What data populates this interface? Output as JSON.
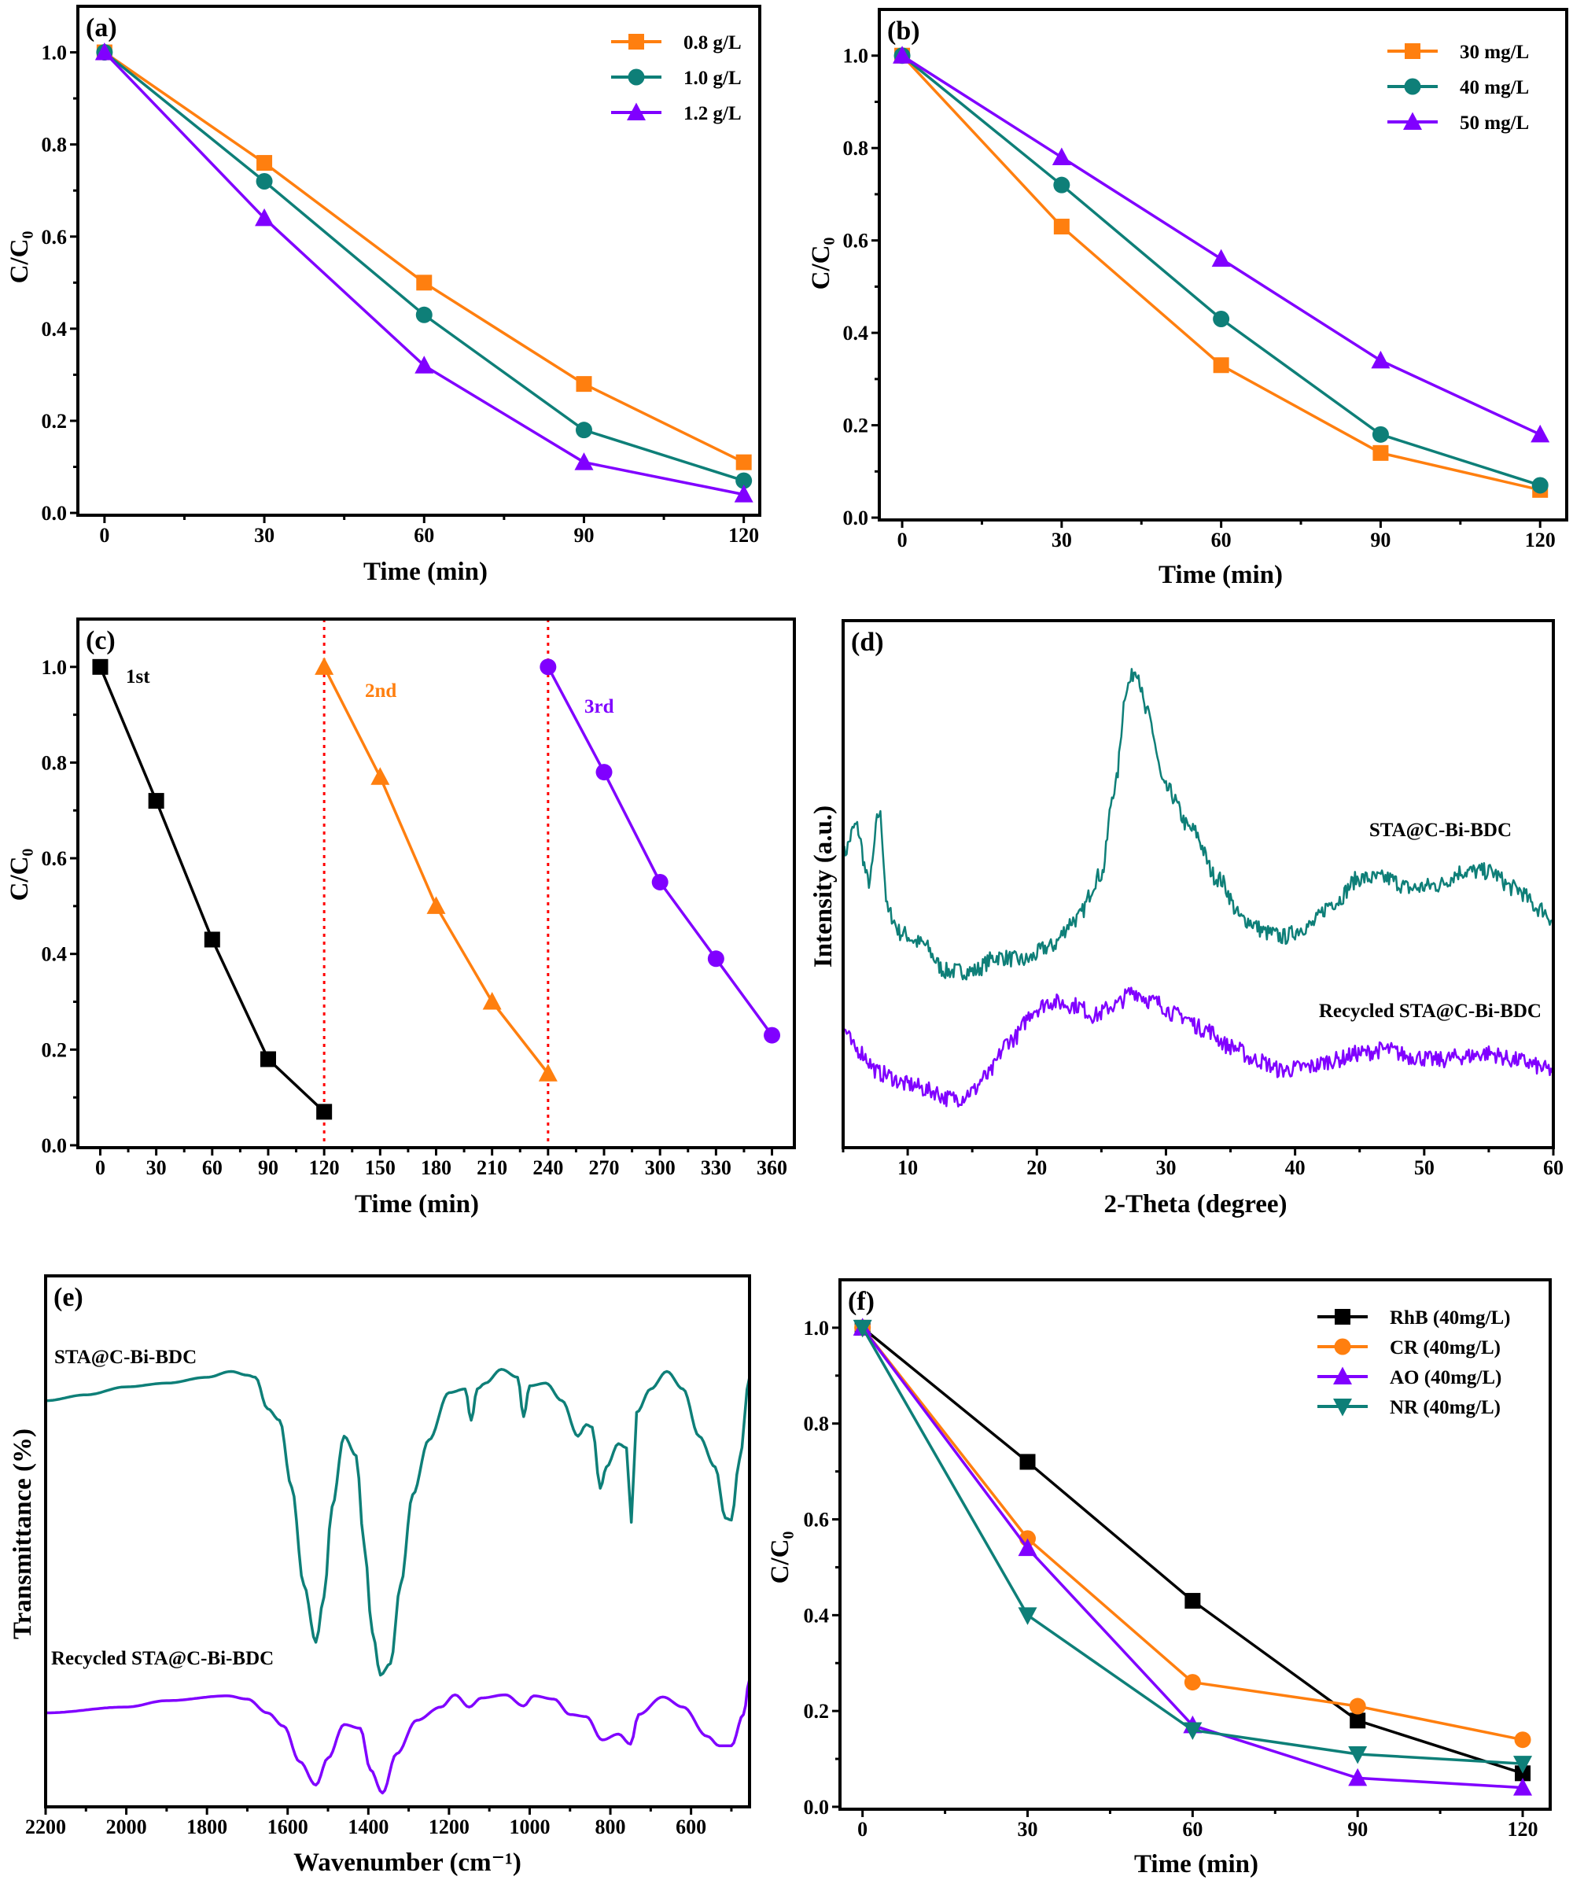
{
  "colors": {
    "orange": "#FF7F0F",
    "teal": "#0E7F78",
    "purple": "#8000FF",
    "black": "#000000",
    "red_guide": "#FF0000"
  },
  "chart_data": [
    {
      "panel": "(a)",
      "type": "line",
      "xlabel": "Time (min)",
      "ylabel": "C/C₀",
      "xlim": [
        -5,
        123
      ],
      "ylim": [
        -0.005,
        1.1
      ],
      "xticks": [
        "0",
        "30",
        "60",
        "90",
        "120"
      ],
      "yticks": [
        "0.0",
        "0.2",
        "0.4",
        "0.6",
        "0.8",
        "1.0"
      ],
      "legend": "top-right",
      "series": [
        {
          "name": "0.8 g/L",
          "color": "#FF7F0F",
          "marker": "square",
          "x": [
            0,
            30,
            60,
            90,
            120
          ],
          "values": [
            1.0,
            0.76,
            0.5,
            0.28,
            0.11
          ]
        },
        {
          "name": "1.0 g/L",
          "color": "#0E7F78",
          "marker": "circle",
          "x": [
            0,
            30,
            60,
            90,
            120
          ],
          "values": [
            1.0,
            0.72,
            0.43,
            0.18,
            0.07
          ]
        },
        {
          "name": "1.2 g/L",
          "color": "#8000FF",
          "marker": "triangle-up",
          "x": [
            0,
            30,
            60,
            90,
            120
          ],
          "values": [
            1.0,
            0.64,
            0.32,
            0.11,
            0.04
          ]
        }
      ]
    },
    {
      "panel": "(b)",
      "type": "line",
      "xlabel": "Time (min)",
      "ylabel": "C/C₀",
      "xlim": [
        -4.3,
        125
      ],
      "ylim": [
        -0.005,
        1.1
      ],
      "xticks": [
        "0",
        "30",
        "60",
        "90",
        "120"
      ],
      "yticks": [
        "0.0",
        "0.2",
        "0.4",
        "0.6",
        "0.8",
        "1.0"
      ],
      "legend": "top-right",
      "series": [
        {
          "name": "30 mg/L",
          "color": "#FF7F0F",
          "marker": "square",
          "x": [
            0,
            30,
            60,
            90,
            120
          ],
          "values": [
            1.0,
            0.63,
            0.33,
            0.14,
            0.06
          ]
        },
        {
          "name": "40 mg/L",
          "color": "#0E7F78",
          "marker": "circle",
          "x": [
            0,
            30,
            60,
            90,
            120
          ],
          "values": [
            1.0,
            0.72,
            0.43,
            0.18,
            0.07
          ]
        },
        {
          "name": "50 mg/L",
          "color": "#8000FF",
          "marker": "triangle-up",
          "x": [
            0,
            30,
            60,
            90,
            120
          ],
          "values": [
            1.0,
            0.78,
            0.56,
            0.34,
            0.18
          ]
        }
      ]
    },
    {
      "panel": "(c)",
      "type": "line",
      "xlabel": "Time (min)",
      "ylabel": "C/C₀",
      "xlim": [
        -12,
        372
      ],
      "ylim": [
        -0.005,
        1.1
      ],
      "xticks": [
        "0",
        "30",
        "60",
        "90",
        "120",
        "150",
        "180",
        "210",
        "240",
        "270",
        "300",
        "330",
        "360"
      ],
      "yticks": [
        "0.0",
        "0.2",
        "0.4",
        "0.6",
        "0.8",
        "1.0"
      ],
      "legend": "inline labels",
      "guides": [
        120,
        240
      ],
      "series": [
        {
          "name": "1st",
          "color": "#000000",
          "marker": "square",
          "x": [
            0,
            30,
            60,
            90,
            120
          ],
          "values": [
            1.0,
            0.72,
            0.43,
            0.18,
            0.07
          ]
        },
        {
          "name": "2nd",
          "color": "#FF7F0F",
          "marker": "triangle-up",
          "x": [
            120,
            150,
            180,
            210,
            240
          ],
          "values": [
            1.0,
            0.77,
            0.5,
            0.3,
            0.15
          ]
        },
        {
          "name": "3rd",
          "color": "#8000FF",
          "marker": "circle",
          "x": [
            240,
            270,
            300,
            330,
            360
          ],
          "values": [
            1.0,
            0.78,
            0.55,
            0.39,
            0.23
          ]
        }
      ]
    },
    {
      "panel": "(d)",
      "type": "line",
      "xlabel": "2-Theta (degree)",
      "ylabel": "Intensity (a.u.)",
      "xlim": [
        5,
        60
      ],
      "ylim": [
        0,
        100
      ],
      "xticks": [
        "10",
        "20",
        "30",
        "40",
        "50",
        "60"
      ],
      "yticks": [],
      "legend": "inline labels",
      "series": [
        {
          "name": "STA@C-Bi-BDC",
          "color": "#0E7F78",
          "x": [
            5,
            6,
            7,
            7.8,
            8.5,
            9.5,
            11,
            13,
            15,
            17,
            19,
            21,
            23,
            25,
            26,
            27,
            27.7,
            28.5,
            30,
            32,
            34,
            36,
            38,
            39,
            41,
            43,
            45,
            47,
            49,
            51,
            53,
            55,
            57,
            59,
            60
          ],
          "values": [
            55.7,
            61,
            50.5,
            63.5,
            44.6,
            40.7,
            38.8,
            33.5,
            33.5,
            36.2,
            35.5,
            38.1,
            43.3,
            51.8,
            68,
            87.6,
            90.9,
            82.4,
            68,
            60.3,
            51.1,
            43.3,
            40.7,
            40,
            42,
            46.6,
            51.1,
            51.1,
            49.2,
            49.8,
            52.4,
            52.4,
            49.2,
            45.3,
            43.3
          ]
        },
        {
          "name": "Recycled STA@C-Bi-BDC",
          "color": "#8000FF",
          "x": [
            5,
            6,
            8,
            10,
            12,
            13,
            14,
            15,
            16,
            18,
            20,
            21,
            23,
            24.5,
            26,
            27.5,
            29,
            31,
            33,
            35,
            37,
            39,
            41,
            43,
            45,
            47,
            49,
            51,
            53,
            55,
            57,
            60
          ],
          "values": [
            22.5,
            18.6,
            14,
            12,
            10.7,
            9.4,
            9.4,
            10.7,
            13.4,
            20.5,
            26.4,
            27.7,
            27,
            25.1,
            27,
            29.6,
            27.7,
            25.1,
            22.5,
            19.2,
            16.6,
            14.7,
            15.3,
            16.6,
            17.9,
            18.6,
            17.3,
            16.6,
            17.3,
            17.9,
            16.6,
            14.7
          ]
        }
      ]
    },
    {
      "panel": "(e)",
      "type": "line",
      "xlabel": "Wavenumber (cm⁻¹)",
      "ylabel": "Transmittance (%)",
      "xlim": [
        2200,
        455
      ],
      "ylim": [
        0,
        100
      ],
      "xticks": [
        "2200",
        "2000",
        "1800",
        "1600",
        "1400",
        "1200",
        "1000",
        "800",
        "600"
      ],
      "yticks": [],
      "legend": "inline labels",
      "series": [
        {
          "name": "STA@C-Bi-BDC",
          "color": "#0E7F78",
          "x": [
            2200,
            2100,
            2000,
            1900,
            1800,
            1740,
            1700,
            1680,
            1650,
            1620,
            1590,
            1560,
            1530,
            1510,
            1490,
            1460,
            1430,
            1410,
            1390,
            1370,
            1345,
            1320,
            1290,
            1250,
            1200,
            1160,
            1145,
            1130,
            1110,
            1070,
            1030,
            1015,
            1000,
            960,
            920,
            880,
            860,
            845,
            825,
            810,
            780,
            760,
            748,
            735,
            700,
            660,
            620,
            580,
            540,
            515,
            500,
            480,
            455
          ],
          "values": [
            76.5,
            77.6,
            79.1,
            79.8,
            80.9,
            82,
            81.3,
            80.9,
            75,
            72.8,
            60.2,
            41.8,
            31,
            39.5,
            56.5,
            69.8,
            66.1,
            49.1,
            32.9,
            24.8,
            27,
            41.8,
            58.8,
            69.1,
            78,
            78.7,
            72.8,
            78.7,
            79.8,
            82.4,
            80.9,
            73.5,
            79.3,
            79.8,
            76.5,
            69.8,
            72,
            71.5,
            60,
            64,
            68.4,
            67.6,
            53.6,
            74.3,
            78.7,
            82,
            78.7,
            69.8,
            64,
            54.4,
            54,
            65.4,
            80.9
          ]
        },
        {
          "name": "Recycled STA@C-Bi-BDC",
          "color": "#8000FF",
          "x": [
            2200,
            2000,
            1900,
            1750,
            1700,
            1650,
            1610,
            1570,
            1530,
            1500,
            1460,
            1420,
            1395,
            1365,
            1330,
            1280,
            1220,
            1185,
            1150,
            1120,
            1060,
            1015,
            990,
            940,
            900,
            860,
            820,
            780,
            750,
            730,
            670,
            620,
            560,
            530,
            500,
            470,
            455
          ],
          "values": [
            17.7,
            18.8,
            20,
            20.9,
            20.3,
            17.7,
            15.2,
            8.5,
            4.1,
            9.2,
            15.5,
            14.8,
            7,
            2.6,
            10,
            16.3,
            18.8,
            21.1,
            18.8,
            20.5,
            21.1,
            19,
            20.9,
            20.3,
            17.4,
            17,
            12.6,
            13.7,
            11.8,
            17.4,
            20.7,
            18.8,
            13.3,
            11.5,
            11.5,
            17.4,
            24
          ]
        }
      ]
    },
    {
      "panel": "(f)",
      "type": "line",
      "xlabel": "Time (min)",
      "ylabel": "C/C₀",
      "xlim": [
        -4.1,
        125
      ],
      "ylim": [
        -0.005,
        1.1
      ],
      "xticks": [
        "0",
        "30",
        "60",
        "90",
        "120"
      ],
      "yticks": [
        "0.0",
        "0.2",
        "0.4",
        "0.6",
        "0.8",
        "1.0"
      ],
      "legend": "top-right",
      "series": [
        {
          "name": "RhB (40mg/L)",
          "color": "#000000",
          "marker": "square",
          "x": [
            0,
            30,
            60,
            90,
            120
          ],
          "values": [
            1.0,
            0.72,
            0.43,
            0.18,
            0.07
          ]
        },
        {
          "name": "CR (40mg/L)",
          "color": "#FF7F0F",
          "marker": "circle",
          "x": [
            0,
            30,
            60,
            90,
            120
          ],
          "values": [
            1.0,
            0.56,
            0.26,
            0.21,
            0.14
          ]
        },
        {
          "name": "AO (40mg/L)",
          "color": "#8000FF",
          "marker": "triangle-up",
          "x": [
            0,
            30,
            60,
            90,
            120
          ],
          "values": [
            1.0,
            0.54,
            0.17,
            0.06,
            0.04
          ]
        },
        {
          "name": "NR (40mg/L)",
          "color": "#0E7F78",
          "marker": "triangle-down",
          "x": [
            0,
            30,
            60,
            90,
            120
          ],
          "values": [
            1.0,
            0.4,
            0.16,
            0.11,
            0.09
          ]
        }
      ]
    }
  ]
}
